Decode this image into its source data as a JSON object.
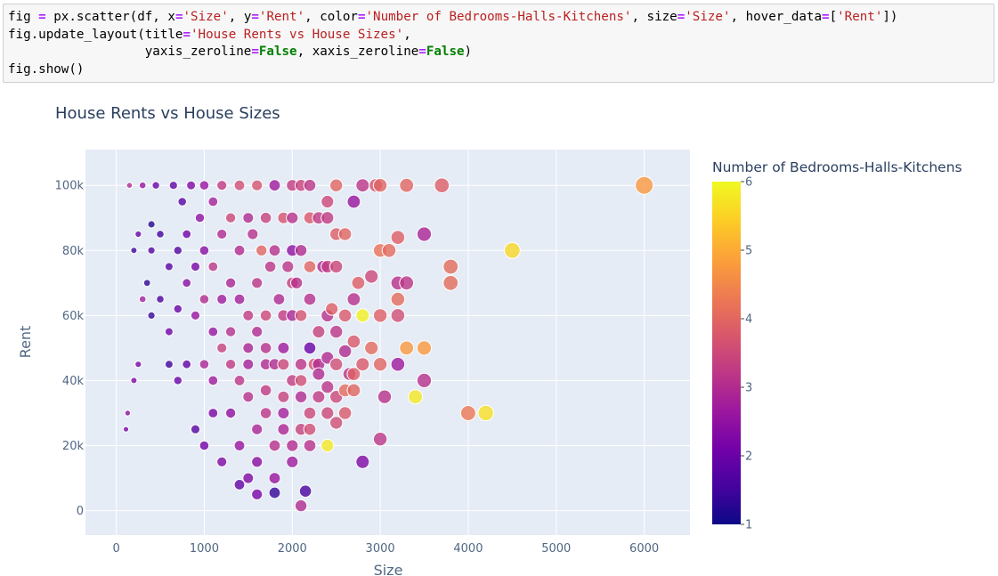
{
  "code_cell": {
    "lines": [
      [
        [
          "t",
          "fig "
        ],
        [
          "o",
          "="
        ],
        [
          "t",
          " px.scatter(df, x"
        ],
        [
          "o",
          "="
        ],
        [
          "s",
          "'Size'"
        ],
        [
          "t",
          ", y"
        ],
        [
          "o",
          "="
        ],
        [
          "s",
          "'Rent'"
        ],
        [
          "t",
          ", color"
        ],
        [
          "o",
          "="
        ],
        [
          "s",
          "'Number of Bedrooms-Halls-Kitchens'"
        ],
        [
          "t",
          ", size"
        ],
        [
          "o",
          "="
        ],
        [
          "s",
          "'Size'"
        ],
        [
          "t",
          ", hover_data"
        ],
        [
          "o",
          "="
        ],
        [
          "t",
          "["
        ],
        [
          "s",
          "'Rent'"
        ],
        [
          "t",
          "])"
        ]
      ],
      [
        [
          "t",
          "fig.update_layout(title"
        ],
        [
          "o",
          "="
        ],
        [
          "s",
          "'House Rents vs House Sizes'"
        ],
        [
          "t",
          ","
        ]
      ],
      [
        [
          "t",
          "                  yaxis_zeroline"
        ],
        [
          "o",
          "="
        ],
        [
          "k",
          "False"
        ],
        [
          "t",
          ", xaxis_zeroline"
        ],
        [
          "o",
          "="
        ],
        [
          "k",
          "False"
        ],
        [
          "t",
          ")"
        ]
      ],
      [
        [
          "t",
          "fig.show()"
        ]
      ]
    ]
  },
  "colors": {
    "plot_bg": "#e5ecf6",
    "grid": "#ffffff",
    "marker_outline": "#ffffff",
    "colorscale_plasma": [
      "#0d0887",
      "#46039f",
      "#7201a8",
      "#9c179e",
      "#bd3786",
      "#d8576b",
      "#ed7953",
      "#fb9f3a",
      "#fdca26",
      "#f0f921"
    ]
  },
  "chart_data": {
    "type": "scatter",
    "title": "House Rents vs House Sizes",
    "xlabel": "Size",
    "ylabel": "Rent",
    "xlim": [
      -350,
      6520
    ],
    "ylim": [
      -7500,
      111000
    ],
    "x_ticks": [
      0,
      1000,
      2000,
      3000,
      4000,
      5000,
      6000
    ],
    "x_tick_labels": [
      "0",
      "1000",
      "2000",
      "3000",
      "4000",
      "5000",
      "6000"
    ],
    "y_ticks": [
      0,
      20000,
      40000,
      60000,
      80000,
      100000
    ],
    "y_tick_labels": [
      "0",
      "20k",
      "40k",
      "60k",
      "80k",
      "100k"
    ],
    "grid": true,
    "zeroline": false,
    "color_by": "Number of Bedrooms-Halls-Kitchens",
    "size_by": "Size",
    "colorbar": {
      "title": "Number of Bedrooms-Halls-Kitchens",
      "range": [
        1,
        6
      ],
      "ticks": [
        1,
        2,
        3,
        4,
        5,
        6
      ],
      "tick_labels": [
        "1",
        "2",
        "3",
        "4",
        "5",
        "6"
      ]
    },
    "points": [
      [
        6000,
        100000,
        4.8
      ],
      [
        4500,
        80000,
        5.6
      ],
      [
        4200,
        30000,
        5.7
      ],
      [
        4000,
        30000,
        4.3
      ],
      [
        3800,
        75000,
        4.1
      ],
      [
        3800,
        70000,
        4.1
      ],
      [
        3700,
        100000,
        3.9
      ],
      [
        3500,
        85000,
        2.9
      ],
      [
        3500,
        50000,
        4.8
      ],
      [
        3500,
        40000,
        3.1
      ],
      [
        3400,
        35000,
        5.8
      ],
      [
        3300,
        100000,
        4.0
      ],
      [
        3300,
        50000,
        4.8
      ],
      [
        3300,
        70000,
        3.2
      ],
      [
        3200,
        84000,
        3.9
      ],
      [
        3200,
        70000,
        3.1
      ],
      [
        3200,
        65000,
        4.1
      ],
      [
        3200,
        60000,
        3.6
      ],
      [
        3200,
        45000,
        2.7
      ],
      [
        3100,
        80000,
        4.1
      ],
      [
        3050,
        35000,
        3.1
      ],
      [
        3000,
        100000,
        4.0
      ],
      [
        3000,
        80000,
        4.2
      ],
      [
        3000,
        60000,
        3.9
      ],
      [
        3000,
        45000,
        4.0
      ],
      [
        3000,
        22000,
        3.2
      ],
      [
        2950,
        100000,
        3.7
      ],
      [
        2900,
        72000,
        3.5
      ],
      [
        2900,
        50000,
        4.1
      ],
      [
        2800,
        100000,
        3.2
      ],
      [
        2800,
        60000,
        5.9
      ],
      [
        2800,
        15000,
        2.3
      ],
      [
        2750,
        70000,
        3.9
      ],
      [
        2700,
        95000,
        2.6
      ],
      [
        2700,
        65000,
        3.1
      ],
      [
        2700,
        52000,
        3.8
      ],
      [
        2700,
        37000,
        4.0
      ],
      [
        2650,
        42000,
        3.2
      ],
      [
        2600,
        60000,
        3.8
      ],
      [
        2600,
        85000,
        4.0
      ],
      [
        2600,
        49000,
        3.0
      ],
      [
        2500,
        100000,
        4.0
      ],
      [
        2500,
        85000,
        3.9
      ],
      [
        2500,
        75000,
        3.5
      ],
      [
        2500,
        55000,
        3.2
      ],
      [
        2500,
        27000,
        3.6
      ],
      [
        2450,
        62000,
        3.9
      ],
      [
        2400,
        95000,
        3.5
      ],
      [
        2400,
        90000,
        3.3
      ],
      [
        2400,
        75000,
        3.3
      ],
      [
        2400,
        60000,
        3.1
      ],
      [
        2400,
        47000,
        3.0
      ],
      [
        2400,
        30000,
        3.5
      ],
      [
        2400,
        20000,
        5.8
      ],
      [
        2350,
        75000,
        3.0
      ],
      [
        2300,
        90000,
        3.3
      ],
      [
        2300,
        45000,
        3.0
      ],
      [
        2250,
        45000,
        3.7
      ],
      [
        2200,
        100000,
        3.2
      ],
      [
        2200,
        90000,
        3.8
      ],
      [
        2200,
        75000,
        4.0
      ],
      [
        2200,
        65000,
        3.1
      ],
      [
        2200,
        50000,
        2.0
      ],
      [
        2200,
        30000,
        3.5
      ],
      [
        2100,
        100000,
        3.4
      ],
      [
        2100,
        60000,
        3.7
      ],
      [
        2100,
        80000,
        3.0
      ],
      [
        2100,
        25000,
        3.4
      ],
      [
        2100,
        1500,
        3.0
      ],
      [
        2150,
        6000,
        1.6
      ],
      [
        2050,
        70000,
        3.1
      ],
      [
        2000,
        100000,
        3.3
      ],
      [
        2000,
        90000,
        3.1
      ],
      [
        2000,
        80000,
        2.5
      ],
      [
        2000,
        70000,
        3.4
      ],
      [
        2000,
        60000,
        2.9
      ],
      [
        2000,
        40000,
        3.3
      ],
      [
        2000,
        20000,
        3.0
      ],
      [
        1950,
        75000,
        3.2
      ],
      [
        1900,
        90000,
        3.7
      ],
      [
        1900,
        60000,
        3.3
      ],
      [
        1900,
        50000,
        2.7
      ],
      [
        1900,
        30000,
        2.8
      ],
      [
        1850,
        65000,
        3.0
      ],
      [
        1800,
        100000,
        2.7
      ],
      [
        1800,
        80000,
        3.1
      ],
      [
        1800,
        45000,
        3.0
      ],
      [
        1800,
        20000,
        3.1
      ],
      [
        1800,
        5500,
        1.4
      ],
      [
        1750,
        75000,
        3.2
      ],
      [
        1700,
        90000,
        3.4
      ],
      [
        1700,
        60000,
        3.5
      ],
      [
        1700,
        37000,
        3.3
      ],
      [
        1650,
        80000,
        4.0
      ],
      [
        1600,
        100000,
        3.7
      ],
      [
        1600,
        70000,
        3.2
      ],
      [
        1600,
        55000,
        3.0
      ],
      [
        1600,
        25000,
        2.9
      ],
      [
        1550,
        85000,
        3.1
      ],
      [
        1500,
        90000,
        3.0
      ],
      [
        1500,
        60000,
        3.3
      ],
      [
        1500,
        45000,
        2.8
      ],
      [
        1500,
        10000,
        2.3
      ],
      [
        1400,
        100000,
        3.6
      ],
      [
        1400,
        80000,
        3.0
      ],
      [
        1400,
        65000,
        2.8
      ],
      [
        1400,
        40000,
        3.2
      ],
      [
        1300,
        90000,
        3.5
      ],
      [
        1300,
        70000,
        2.9
      ],
      [
        1300,
        55000,
        3.1
      ],
      [
        1200,
        100000,
        3.3
      ],
      [
        1200,
        85000,
        3.0
      ],
      [
        1200,
        65000,
        2.7
      ],
      [
        1200,
        50000,
        3.4
      ],
      [
        1100,
        95000,
        2.8
      ],
      [
        1100,
        75000,
        3.2
      ],
      [
        1100,
        55000,
        2.6
      ],
      [
        1000,
        100000,
        2.6
      ],
      [
        1000,
        80000,
        2.4
      ],
      [
        1000,
        65000,
        3.0
      ],
      [
        950,
        90000,
        2.5
      ],
      [
        900,
        75000,
        2.2
      ],
      [
        900,
        60000,
        2.6
      ],
      [
        850,
        100000,
        2.3
      ],
      [
        800,
        85000,
        2.1
      ],
      [
        800,
        70000,
        2.4
      ],
      [
        750,
        95000,
        1.8
      ],
      [
        700,
        80000,
        1.7
      ],
      [
        700,
        62000,
        2.0
      ],
      [
        650,
        100000,
        1.9
      ],
      [
        600,
        75000,
        1.8
      ],
      [
        600,
        55000,
        2.1
      ],
      [
        500,
        85000,
        1.5
      ],
      [
        500,
        65000,
        1.6
      ],
      [
        450,
        100000,
        2.0
      ],
      [
        400,
        80000,
        1.7
      ],
      [
        400,
        60000,
        1.4
      ],
      [
        350,
        70000,
        1.3
      ],
      [
        300,
        100000,
        2.6
      ],
      [
        300,
        65000,
        2.8
      ],
      [
        250,
        85000,
        2.0
      ],
      [
        250,
        45000,
        2.2
      ],
      [
        200,
        80000,
        1.5
      ],
      [
        200,
        40000,
        2.3
      ],
      [
        150,
        100000,
        3.0
      ],
      [
        130,
        30000,
        2.5
      ],
      [
        110,
        25000,
        2.2
      ],
      [
        400,
        88000,
        1.2
      ],
      [
        800,
        45000,
        1.9
      ],
      [
        1000,
        45000,
        2.9
      ],
      [
        600,
        45000,
        1.5
      ],
      [
        700,
        40000,
        2.0
      ],
      [
        1100,
        40000,
        2.7
      ],
      [
        1300,
        45000,
        3.3
      ],
      [
        1700,
        45000,
        3.0
      ],
      [
        1900,
        45000,
        3.5
      ],
      [
        2100,
        45000,
        3.2
      ],
      [
        2300,
        55000,
        3.4
      ],
      [
        2500,
        45000,
        3.6
      ],
      [
        2800,
        45000,
        3.8
      ],
      [
        1500,
        35000,
        3.1
      ],
      [
        1700,
        30000,
        3.2
      ],
      [
        1900,
        25000,
        2.9
      ],
      [
        2100,
        35000,
        3.0
      ],
      [
        2300,
        35000,
        3.3
      ],
      [
        2500,
        35000,
        3.5
      ],
      [
        2600,
        30000,
        3.8
      ],
      [
        2200,
        20000,
        3.1
      ],
      [
        2000,
        15000,
        2.7
      ],
      [
        2200,
        25000,
        3.6
      ],
      [
        2600,
        37000,
        4.1
      ],
      [
        2700,
        42000,
        3.9
      ],
      [
        1600,
        15000,
        2.4
      ],
      [
        1400,
        20000,
        2.6
      ],
      [
        1200,
        15000,
        2.3
      ],
      [
        1000,
        20000,
        2.1
      ],
      [
        900,
        25000,
        1.8
      ],
      [
        1900,
        35000,
        3.4
      ],
      [
        1700,
        50000,
        3.1
      ],
      [
        1500,
        50000,
        2.9
      ],
      [
        1300,
        30000,
        2.5
      ],
      [
        1100,
        30000,
        2.2
      ],
      [
        1800,
        10000,
        2.6
      ],
      [
        1600,
        5000,
        2.2
      ],
      [
        1400,
        8000,
        1.9
      ],
      [
        2100,
        40000,
        3.6
      ],
      [
        2300,
        42000,
        3.0
      ],
      [
        2400,
        38000,
        3.2
      ]
    ]
  }
}
